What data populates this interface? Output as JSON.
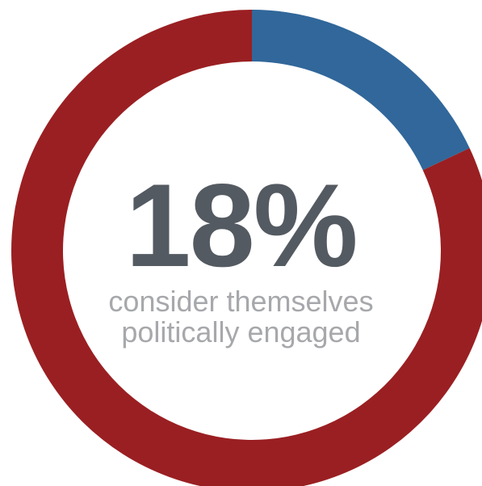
{
  "chart_data": {
    "type": "pie",
    "style": "donut",
    "slices": [
      {
        "label": "consider themselves politically engaged",
        "value": 18,
        "color": "#31679a"
      },
      {
        "label": "",
        "value": 82,
        "color": "#9a1f22"
      }
    ],
    "data_label": "18%",
    "caption_lines": [
      "consider themselves",
      "politically engaged"
    ]
  }
}
